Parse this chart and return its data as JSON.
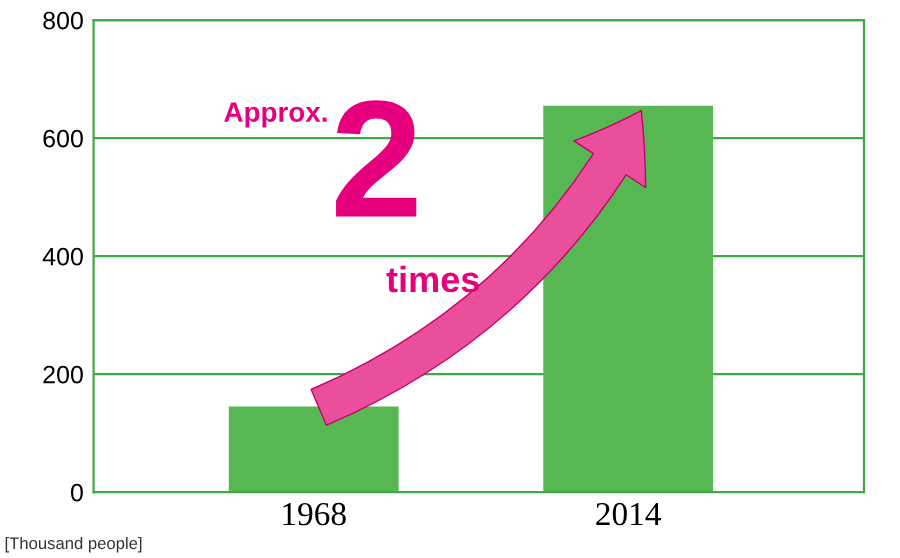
{
  "chart_data": {
    "type": "bar",
    "categories": [
      "1968",
      "2014"
    ],
    "values": [
      145,
      655
    ],
    "color": "#56b753",
    "ylim": [
      0,
      800
    ],
    "yticks": [
      0,
      200,
      400,
      600,
      800
    ],
    "grid": "y",
    "annotations": [
      "Approx.",
      "2",
      "times",
      "[Thousand people]"
    ]
  }
}
